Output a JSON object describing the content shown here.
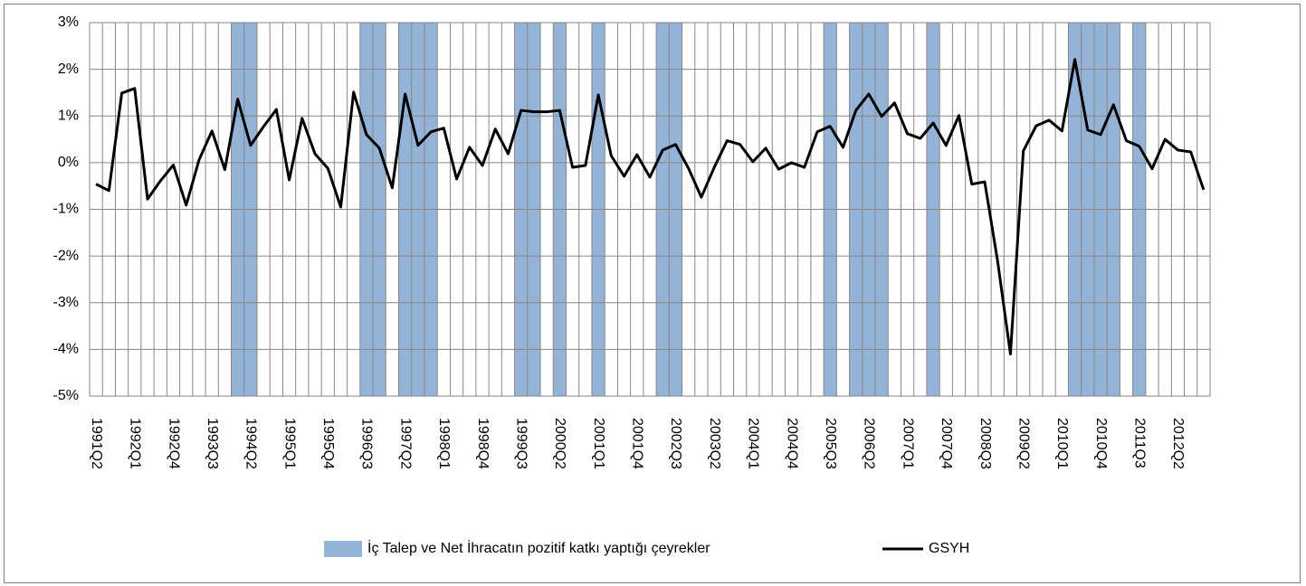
{
  "chart_data": {
    "type": "line",
    "categories": [
      "1991Q2",
      null,
      null,
      "1992Q1",
      null,
      null,
      "1992Q4",
      null,
      null,
      "1993Q3",
      null,
      null,
      "1994Q2",
      null,
      null,
      "1995Q1",
      null,
      null,
      "1995Q4",
      null,
      null,
      "1996Q3",
      null,
      null,
      "1997Q2",
      null,
      null,
      "1998Q1",
      null,
      null,
      "1998Q4",
      null,
      null,
      "1999Q3",
      null,
      null,
      "2000Q2",
      null,
      null,
      "2001Q1",
      null,
      null,
      "2001Q4",
      null,
      null,
      "2002Q3",
      null,
      null,
      "2003Q2",
      null,
      null,
      "2004Q1",
      null,
      null,
      "2004Q4",
      null,
      null,
      "2005Q3",
      null,
      null,
      "2006Q2",
      null,
      null,
      "2007Q1",
      null,
      null,
      "2007Q4",
      null,
      null,
      "2008Q3",
      null,
      null,
      "2009Q2",
      null,
      null,
      "2010Q1",
      null,
      null,
      "2010Q4",
      null,
      null,
      "2011Q3",
      null,
      null,
      "2012Q2",
      null,
      null
    ],
    "series": [
      {
        "name": "İç Talep ve Net İhracatın pozitif katkı yaptığı çeyrekler",
        "type": "bar",
        "axis": "y2",
        "color": "#95b3d7",
        "values": [
          0,
          0,
          0,
          0,
          0,
          0,
          0,
          0,
          0,
          0,
          0,
          1,
          1,
          0,
          0,
          0,
          0,
          0,
          0,
          0,
          0,
          1,
          1,
          0,
          1,
          1,
          1,
          0,
          0,
          0,
          0,
          0,
          0,
          1,
          1,
          0,
          1,
          0,
          0,
          1,
          0,
          0,
          0,
          0,
          1,
          1,
          0,
          0,
          0,
          0,
          0,
          0,
          0,
          0,
          0,
          0,
          0,
          1,
          0,
          1,
          1,
          1,
          0,
          0,
          0,
          1,
          0,
          0,
          0,
          0,
          0,
          0,
          0,
          0,
          0,
          0,
          1,
          1,
          1,
          1,
          0,
          1,
          0,
          0,
          0,
          0,
          0
        ]
      },
      {
        "name": "GSYH",
        "type": "line",
        "color": "#000000",
        "values": [
          -0.46,
          -0.6,
          1.49,
          1.59,
          -0.78,
          -0.39,
          -0.05,
          -0.91,
          0.06,
          0.68,
          -0.15,
          1.36,
          0.37,
          0.77,
          1.14,
          -0.37,
          0.95,
          0.19,
          -0.12,
          -0.95,
          1.51,
          0.6,
          0.31,
          -0.54,
          1.47,
          0.37,
          0.66,
          0.74,
          -0.35,
          0.33,
          -0.06,
          0.72,
          0.19,
          1.12,
          1.09,
          1.09,
          1.12,
          -0.1,
          -0.06,
          1.45,
          0.15,
          -0.29,
          0.17,
          -0.31,
          0.27,
          0.39,
          -0.12,
          -0.74,
          -0.1,
          0.47,
          0.39,
          0.02,
          0.31,
          -0.14,
          0,
          -0.1,
          0.66,
          0.78,
          0.33,
          1.12,
          1.47,
          0.99,
          1.28,
          0.62,
          0.52,
          0.85,
          0.37,
          1.01,
          -0.46,
          -0.41,
          -2.1,
          -4.1,
          0.25,
          0.79,
          0.91,
          0.68,
          2.21,
          0.7,
          0.6,
          1.24,
          0.47,
          0.35,
          -0.13,
          0.5,
          0.27,
          0.23,
          -0.58
        ]
      }
    ],
    "ylim": [
      -5,
      3
    ],
    "yticks": [
      {
        "value": -5,
        "label": "-5%"
      },
      {
        "value": -4,
        "label": "-4%"
      },
      {
        "value": -3,
        "label": "-3%"
      },
      {
        "value": -2,
        "label": "-2%"
      },
      {
        "value": -1,
        "label": "-1%"
      },
      {
        "value": 0,
        "label": "0%"
      },
      {
        "value": 1,
        "label": "1%"
      },
      {
        "value": 2,
        "label": "2%"
      },
      {
        "value": 3,
        "label": "3%"
      }
    ],
    "y2lim": [
      0,
      1
    ],
    "grid": true,
    "legend": "bottom"
  }
}
